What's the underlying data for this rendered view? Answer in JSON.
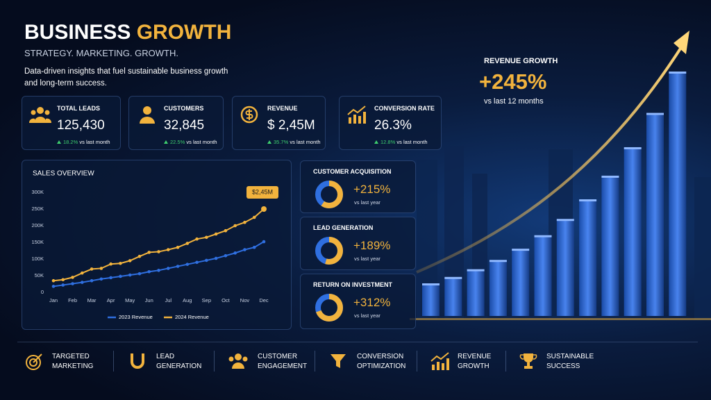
{
  "header": {
    "title_main": "BUSINESS",
    "title_accent": "GROWTH",
    "subtitle": "STRATEGY. MARKETING. GROWTH.",
    "description_lines": [
      "Data-driven insights that fuel sustainable business growth",
      "and long-term success."
    ]
  },
  "kpis": [
    {
      "label": "TOTAL LEADS",
      "value": "125,430",
      "change": "18.2%",
      "note": "vs last month"
    },
    {
      "label": "CUSTOMERS",
      "value": "32,845",
      "change": "22.5%",
      "note": "vs last month"
    },
    {
      "label": "REVENUE",
      "value": "$ 2,45M",
      "change": "35.7%",
      "note": "vs last month"
    },
    {
      "label": "CONVERSION RATE",
      "value": "26.3%",
      "change": "12.8%",
      "note": "vs last month"
    }
  ],
  "chart_data": {
    "type": "line",
    "title": "SALES OVERVIEW",
    "categories": [
      "Jan",
      null,
      "Feb",
      null,
      "Mar",
      null,
      "Apr",
      null,
      "May",
      null,
      "Jun",
      null,
      "Jul",
      null,
      "Aug",
      null,
      "Sep",
      null,
      "Oct",
      null,
      "Nov",
      null,
      "Dec"
    ],
    "series": [
      {
        "name": "2023 Revenue",
        "color": "#2f6fe0",
        "values": [
          18000,
          22000,
          26000,
          30000,
          35000,
          40000,
          44000,
          48000,
          52000,
          56000,
          62000,
          66000,
          72000,
          78000,
          84000,
          90000,
          96000,
          102000,
          110000,
          118000,
          128000,
          135000,
          152000
        ]
      },
      {
        "name": "2024 Revenue",
        "color": "#f2b33d",
        "values": [
          35000,
          38000,
          45000,
          58000,
          70000,
          72000,
          85000,
          87000,
          95000,
          108000,
          120000,
          122000,
          128000,
          135000,
          147000,
          160000,
          165000,
          175000,
          185000,
          200000,
          210000,
          225000,
          250000
        ]
      }
    ],
    "ylim": [
      0,
      300000
    ],
    "yticks": [
      0,
      {
        "value": 50000,
        "label": "50K"
      },
      {
        "value": 100000,
        "label": "100K"
      },
      {
        "value": 150000,
        "label": "150K"
      },
      {
        "value": 200000,
        "label": "200K"
      },
      {
        "value": 250000,
        "label": "250K"
      },
      {
        "value": 300000,
        "label": "300K"
      }
    ],
    "grid": false,
    "legend": "bottom",
    "annotation": "$2,45M"
  },
  "metrics": [
    {
      "title": "CUSTOMER ACQUISITION",
      "value": "+215%",
      "note": "vs last year"
    },
    {
      "title": "LEAD GENERATION",
      "value": "+189%",
      "note": "vs last year"
    },
    {
      "title": "RETURN ON INVESTMENT",
      "value": "+312%",
      "note": "vs last year"
    }
  ],
  "revenue_growth": {
    "label": "REVENUE GROWTH",
    "value": "+245%",
    "note": "vs last 12 months"
  },
  "features": [
    {
      "lines": [
        "TARGETED",
        "MARKETING"
      ]
    },
    {
      "lines": [
        "LEAD",
        "GENERATION"
      ]
    },
    {
      "lines": [
        "CUSTOMER",
        "ENGAGEMENT"
      ]
    },
    {
      "lines": [
        "CONVERSION",
        "OPTIMIZATION"
      ]
    },
    {
      "lines": [
        "REVENUE",
        "GROWTH"
      ]
    },
    {
      "lines": [
        "SUSTAINABLE",
        "SUCCESS"
      ]
    }
  ]
}
